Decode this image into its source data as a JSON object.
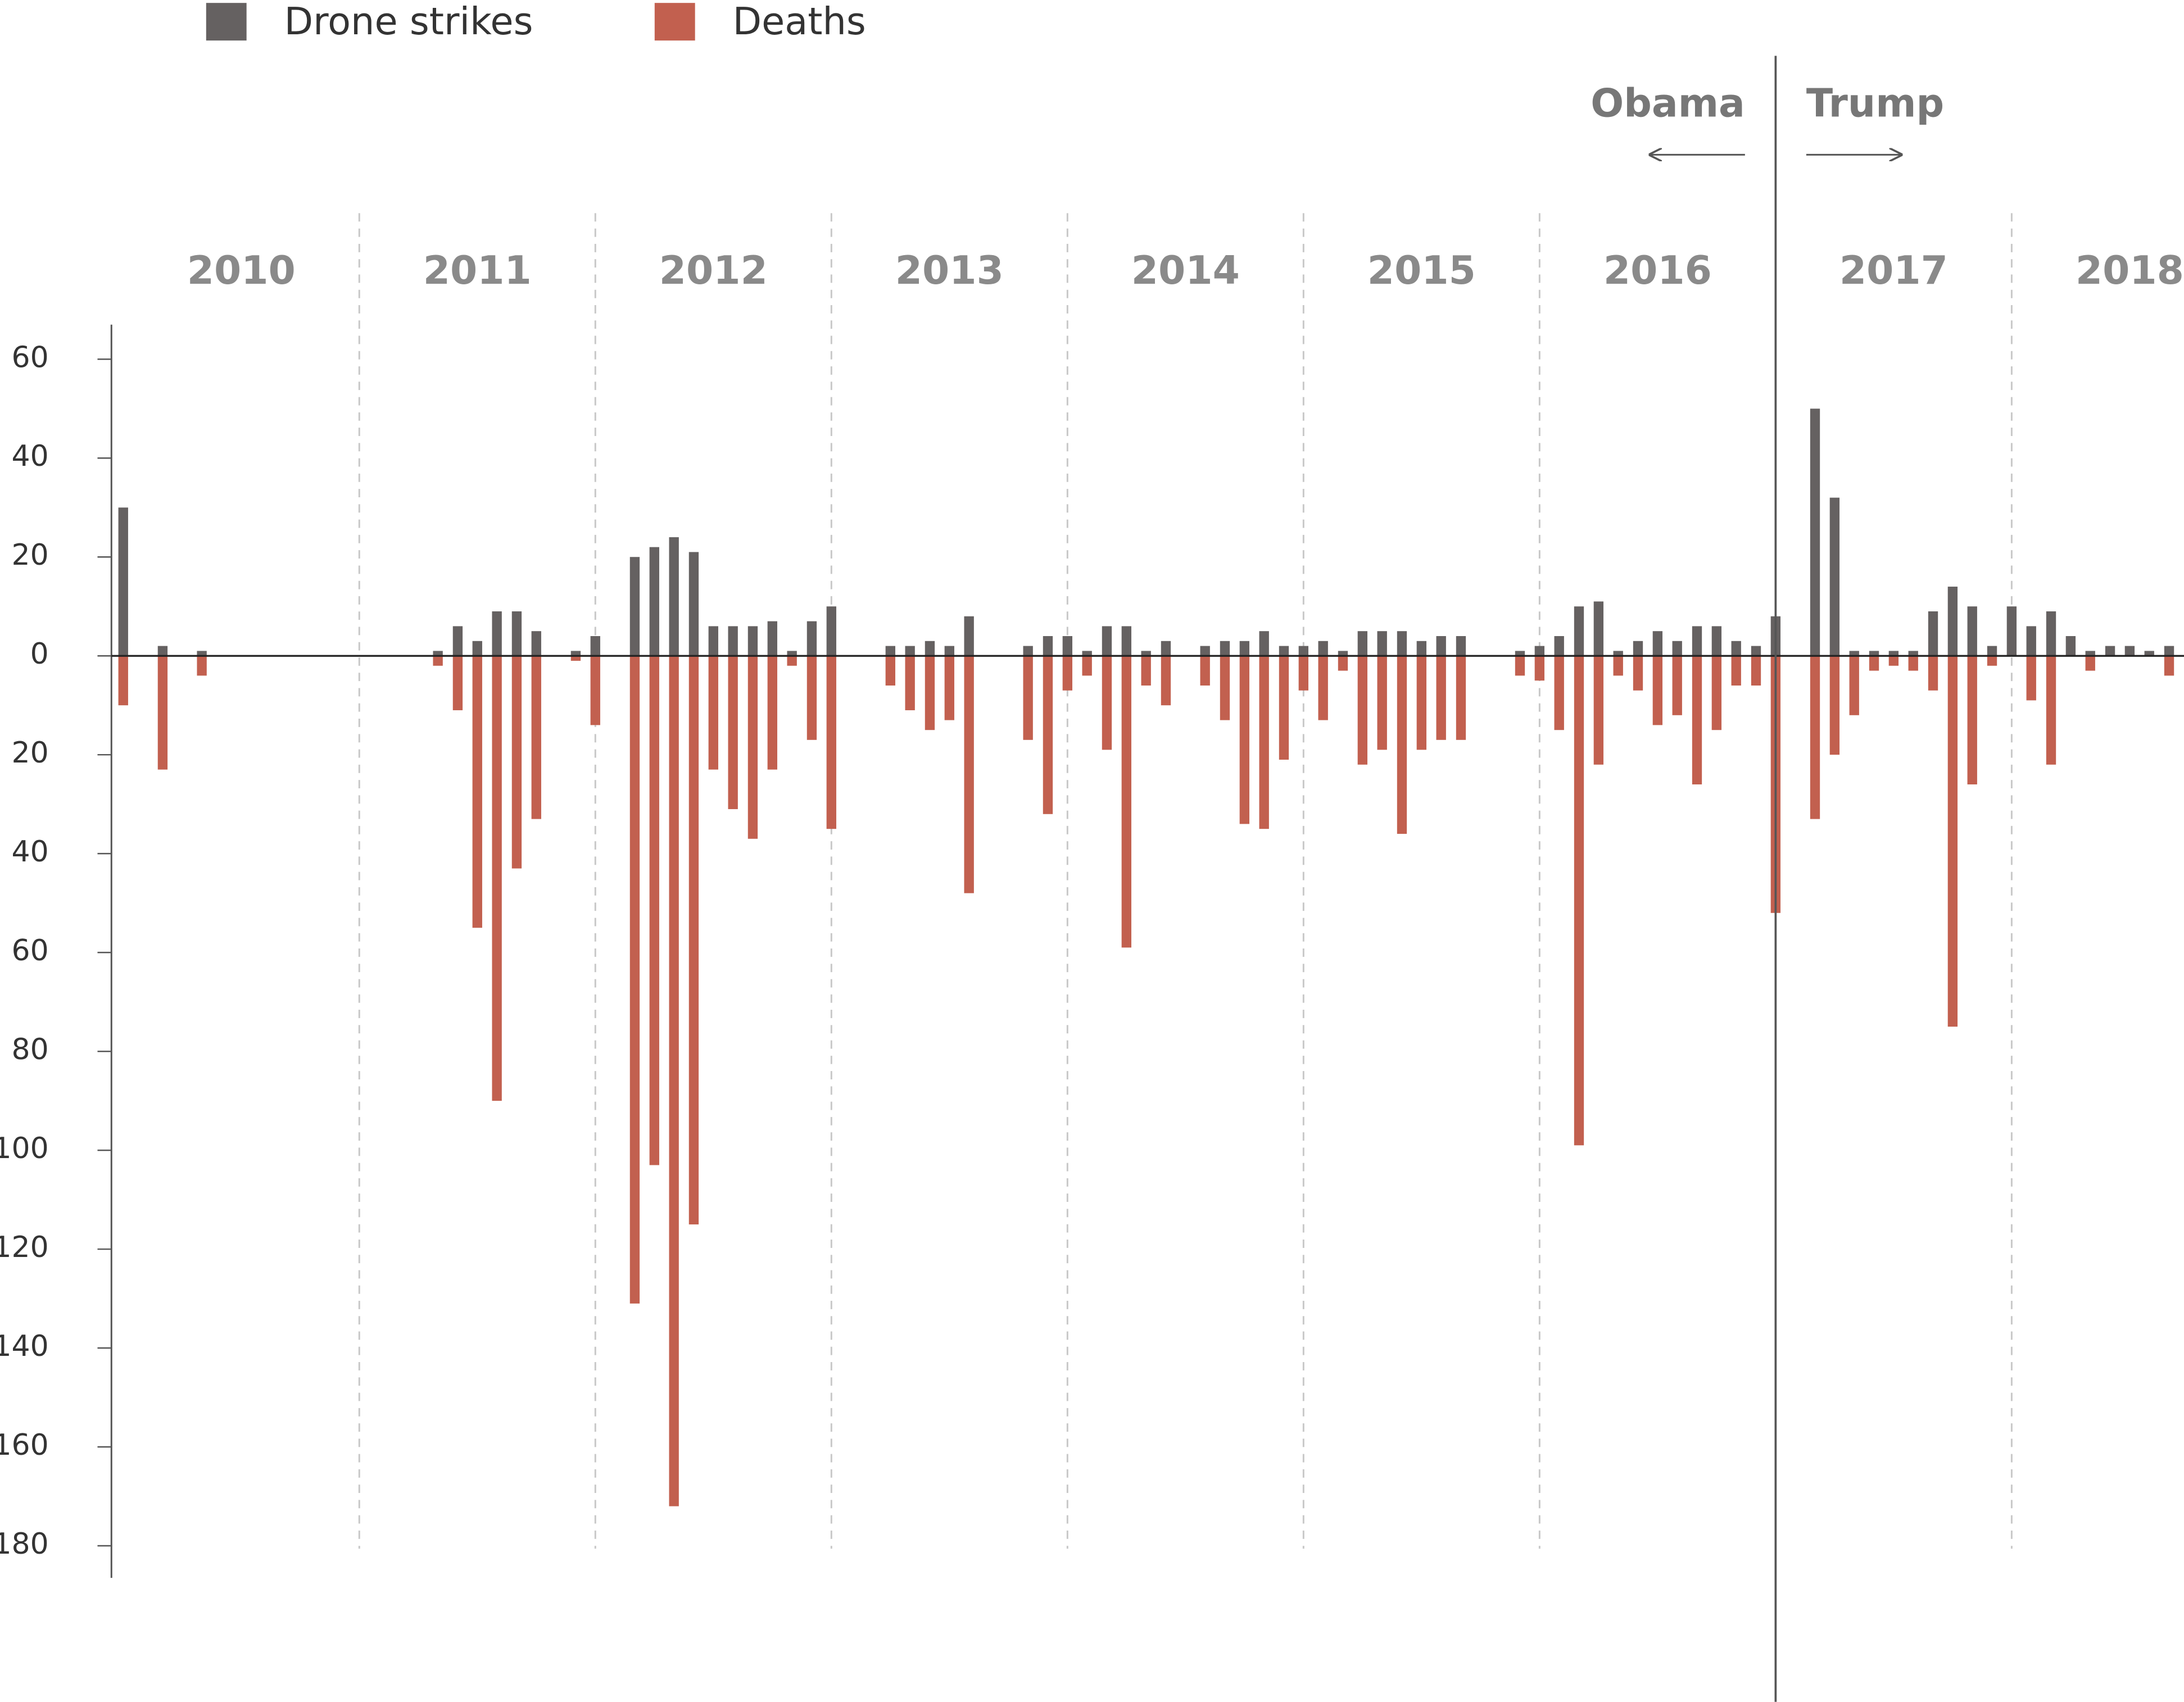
{
  "chart_data": {
    "type": "bar",
    "x": [
      2010,
      2010.167,
      2010.333,
      2011.333,
      2011.417,
      2011.5,
      2011.583,
      2011.667,
      2011.75,
      2011.917,
      2012,
      2012.167,
      2012.25,
      2012.333,
      2012.417,
      2012.5,
      2012.583,
      2012.667,
      2012.75,
      2012.833,
      2012.917,
      2013,
      2013.25,
      2013.333,
      2013.417,
      2013.5,
      2013.583,
      2013.833,
      2013.917,
      2014,
      2014.083,
      2014.167,
      2014.25,
      2014.333,
      2014.417,
      2014.583,
      2014.667,
      2014.75,
      2014.833,
      2014.917,
      2015,
      2015.083,
      2015.167,
      2015.25,
      2015.333,
      2015.417,
      2015.5,
      2015.583,
      2015.667,
      2015.917,
      2016,
      2016.083,
      2016.167,
      2016.25,
      2016.333,
      2016.417,
      2016.5,
      2016.583,
      2016.667,
      2016.75,
      2016.833,
      2016.917,
      2017,
      2017.167,
      2017.25,
      2017.333,
      2017.417,
      2017.5,
      2017.583,
      2017.667,
      2017.75,
      2017.833,
      2017.917,
      2018,
      2018.083,
      2018.167,
      2018.25,
      2018.333,
      2018.417,
      2018.5,
      2018.583,
      2018.667
    ],
    "series": [
      {
        "name": "Drone strikes",
        "color": "#656161",
        "values": [
          30,
          2,
          1,
          1,
          6,
          3,
          9,
          9,
          5,
          1,
          4,
          20,
          22,
          24,
          21,
          6,
          6,
          6,
          7,
          1,
          7,
          10,
          2,
          2,
          3,
          2,
          8,
          2,
          4,
          4,
          1,
          6,
          6,
          1,
          3,
          2,
          3,
          3,
          5,
          2,
          2,
          3,
          1,
          5,
          5,
          5,
          3,
          4,
          4,
          1,
          2,
          4,
          10,
          11,
          1,
          3,
          5,
          3,
          6,
          6,
          3,
          2,
          8,
          50,
          32,
          1,
          1,
          1,
          1,
          9,
          14,
          10,
          2,
          10,
          6,
          9,
          4,
          1,
          2,
          2,
          1,
          2
        ]
      },
      {
        "name": "Deaths",
        "color": "#c2604f",
        "values": [
          -10,
          -23,
          -4,
          -2,
          -11,
          -55,
          -90,
          -43,
          -33,
          -1,
          -14,
          -131,
          -103,
          -172,
          -115,
          -23,
          -31,
          -37,
          -23,
          -2,
          -17,
          -35,
          -6,
          -11,
          -15,
          -13,
          -48,
          -17,
          -32,
          -7,
          -4,
          -19,
          -59,
          -6,
          -10,
          -6,
          -13,
          -34,
          -35,
          -21,
          -7,
          -13,
          -3,
          -22,
          -19,
          -36,
          -19,
          -17,
          -17,
          -4,
          -5,
          -15,
          -99,
          -22,
          -4,
          -7,
          -14,
          -12,
          -26,
          -15,
          -6,
          -6,
          -52,
          -33,
          -20,
          -12,
          -3,
          -2,
          -3,
          -7,
          -75,
          -26,
          -2,
          0,
          -9,
          -22,
          0,
          -3,
          0,
          0,
          0,
          -4
        ]
      }
    ],
    "xlim": [
      2009.95,
      2018.73
    ],
    "xticks": [
      {
        "value": 2010.5,
        "label": "2010"
      },
      {
        "value": 2011.5,
        "label": "2011"
      },
      {
        "value": 2012.5,
        "label": "2012"
      },
      {
        "value": 2013.5,
        "label": "2013"
      },
      {
        "value": 2014.5,
        "label": "2014"
      },
      {
        "value": 2015.5,
        "label": "2015"
      },
      {
        "value": 2016.5,
        "label": "2016"
      },
      {
        "value": 2017.5,
        "label": "2017"
      },
      {
        "value": 2018.5,
        "label": "2018"
      }
    ],
    "year_dividers": [
      2011,
      2012,
      2013,
      2014,
      2015,
      2016,
      2018
    ],
    "ylim": [
      -186.5,
      67
    ],
    "yticks": [
      60,
      40,
      20,
      0,
      {
        "value": -20,
        "label": "20"
      },
      {
        "value": -40,
        "label": "40"
      },
      {
        "value": -60,
        "label": "60"
      },
      {
        "value": -80,
        "label": "80"
      },
      {
        "value": -100,
        "label": "100"
      },
      {
        "value": -120,
        "label": "120"
      },
      {
        "value": -140,
        "label": "140"
      },
      {
        "value": -160,
        "label": "160"
      },
      {
        "value": -180,
        "label": "180"
      }
    ],
    "annotation": {
      "x": 2017,
      "left": "Obama",
      "right": "Trump"
    }
  }
}
